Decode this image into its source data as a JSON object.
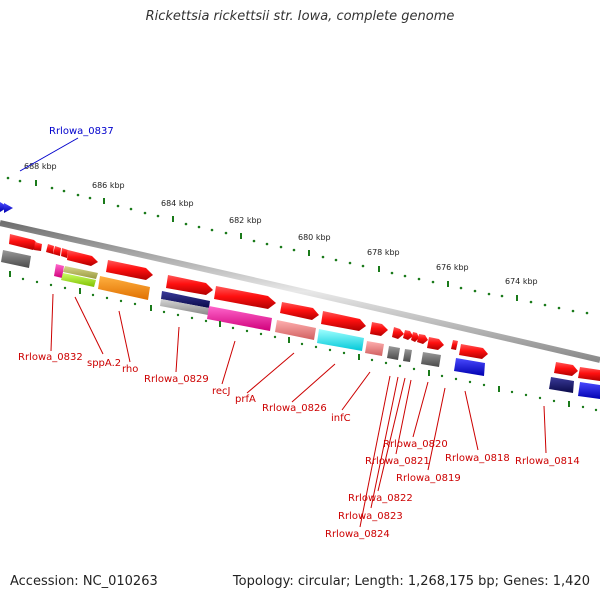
{
  "title": "Rickettsia rickettsii str. Iowa, complete genome",
  "footer": {
    "accession": "Accession: NC_010263",
    "summary": "Topology: circular; Length: 1,268,175 bp; Genes: 1,420"
  },
  "colors": {
    "forward_gene": "#ee0000",
    "backbone": "#999999",
    "tick": "#1a7a1a",
    "label_red": "#cc0000",
    "label_blue": "#0000cc"
  },
  "scale_ticks": [
    "688 kbp",
    "686 kbp",
    "684 kbp",
    "682 kbp",
    "680 kbp",
    "678 kbp",
    "676 kbp",
    "674 kbp"
  ],
  "gene_labels": [
    "Rrlowa_0837",
    "Rrlowa_0832",
    "sppA.2",
    "rho",
    "Rrlowa_0829",
    "recJ",
    "prfA",
    "Rrlowa_0826",
    "infC",
    "Rrlowa_0820",
    "Rrlowa_0821",
    "Rrlowa_0819",
    "Rrlowa_0818",
    "Rrlowa_0814",
    "Rrlowa_0822",
    "Rrlowa_0823",
    "Rrlowa_0824"
  ]
}
